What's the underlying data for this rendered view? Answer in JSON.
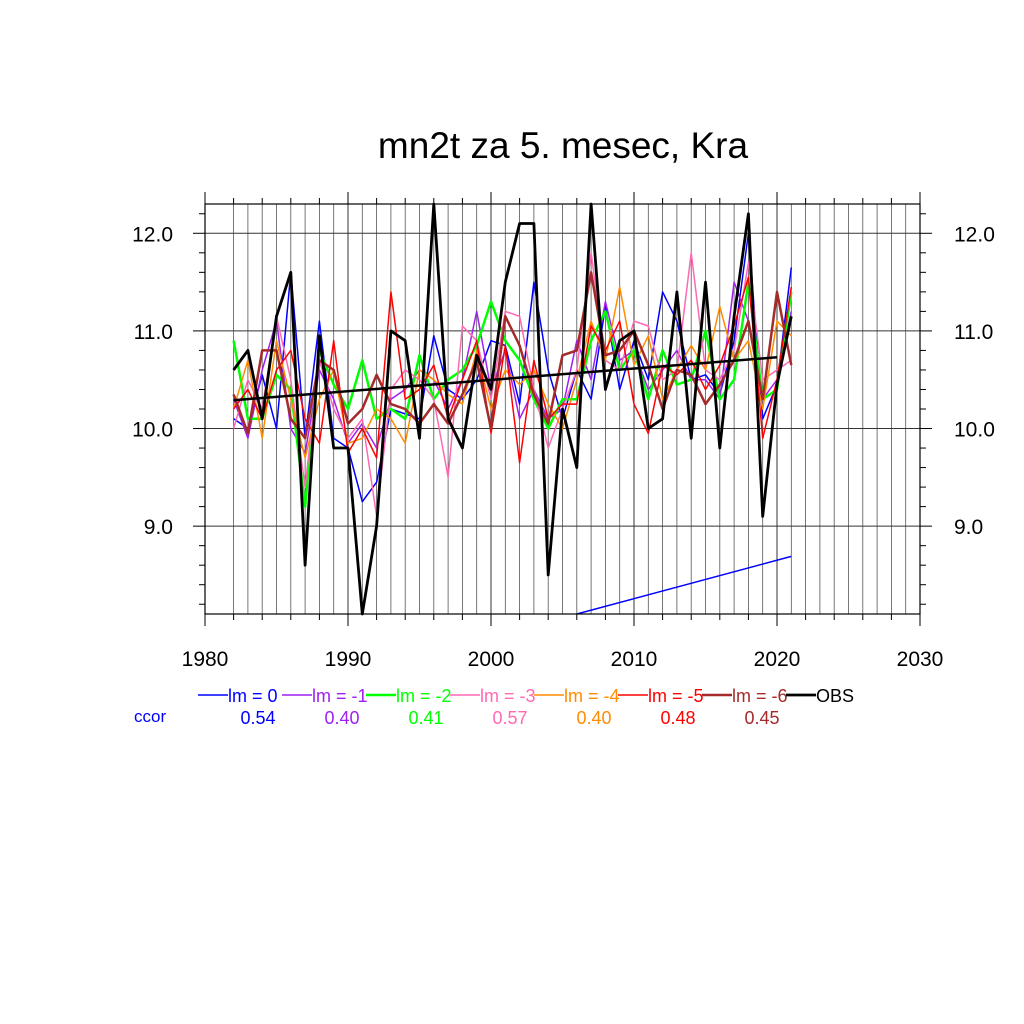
{
  "chart_data": {
    "type": "line",
    "title": "mn2t za 5. mesec, Kra",
    "xlabel": "",
    "ylabel": "",
    "xlim": [
      1980,
      2030
    ],
    "ylim": [
      8.1,
      12.3
    ],
    "x_ticks": [
      1980,
      1990,
      2000,
      2010,
      2020,
      2030
    ],
    "y_ticks": [
      9.0,
      10.0,
      11.0,
      12.0
    ],
    "y_tick_labels": [
      "9.0",
      "10.0",
      "11.0",
      "12.0"
    ],
    "grid": true,
    "legend_position": "bottom",
    "ccor_label": "ccor",
    "ccor_color": "#0000ff",
    "x": [
      1982,
      1983,
      1984,
      1985,
      1986,
      1987,
      1988,
      1989,
      1990,
      1991,
      1992,
      1993,
      1994,
      1995,
      1996,
      1997,
      1998,
      1999,
      2000,
      2001,
      2002,
      2003,
      2004,
      2005,
      2006,
      2007,
      2008,
      2009,
      2010,
      2011,
      2012,
      2013,
      2014,
      2015,
      2016,
      2017,
      2018,
      2019,
      2020,
      2021
    ],
    "series": [
      {
        "name": "lm = 0",
        "color": "#0000ff",
        "width": 1.5,
        "ccor": "0.54",
        "values": [
          10.1,
          10.0,
          10.55,
          10.0,
          11.6,
          9.9,
          11.1,
          9.9,
          9.8,
          9.25,
          9.45,
          10.2,
          10.15,
          10.1,
          10.95,
          10.4,
          10.3,
          10.5,
          10.9,
          10.85,
          10.25,
          11.5,
          10.6,
          10.1,
          10.6,
          10.3,
          11.25,
          10.4,
          10.9,
          10.5,
          11.4,
          11.1,
          10.5,
          10.55,
          10.35,
          10.9,
          12.0,
          10.1,
          10.45,
          11.65
        ]
      },
      {
        "name": "lm = -1",
        "color": "#a020f0",
        "width": 1.5,
        "ccor": "0.40",
        "values": [
          10.3,
          9.9,
          10.6,
          11.1,
          10.0,
          9.75,
          10.6,
          10.3,
          9.85,
          10.05,
          9.8,
          10.3,
          10.4,
          10.6,
          10.5,
          10.2,
          10.5,
          11.2,
          10.4,
          10.8,
          10.1,
          10.4,
          10.1,
          10.2,
          10.9,
          10.5,
          11.3,
          10.7,
          10.8,
          10.4,
          10.6,
          10.8,
          10.5,
          10.5,
          10.3,
          11.5,
          11.1,
          10.3,
          10.5,
          11.2
        ]
      },
      {
        "name": "lm = -2",
        "color": "#00ff00",
        "width": 2.5,
        "ccor": "0.41",
        "values": [
          10.9,
          10.1,
          10.1,
          10.55,
          10.4,
          9.2,
          10.8,
          10.45,
          10.2,
          10.7,
          10.1,
          10.2,
          10.1,
          10.75,
          10.3,
          10.5,
          10.6,
          10.85,
          11.3,
          10.9,
          10.7,
          10.3,
          10.0,
          10.3,
          10.3,
          10.9,
          11.2,
          10.6,
          10.8,
          10.3,
          10.8,
          10.45,
          10.5,
          11.0,
          10.3,
          10.5,
          11.5,
          10.3,
          10.4,
          11.4
        ]
      },
      {
        "name": "lm = -3",
        "color": "#ff69b4",
        "width": 1.5,
        "ccor": "0.57",
        "values": [
          10.0,
          10.5,
          10.2,
          11.15,
          10.5,
          9.4,
          10.7,
          10.2,
          9.9,
          10.1,
          9.1,
          10.4,
          10.6,
          10.5,
          10.3,
          9.5,
          11.05,
          10.9,
          10.3,
          11.2,
          11.15,
          10.4,
          9.8,
          10.2,
          10.6,
          11.8,
          10.7,
          10.6,
          11.1,
          11.05,
          10.5,
          10.6,
          11.8,
          10.6,
          10.5,
          10.8,
          11.7,
          10.5,
          10.6,
          10.7
        ]
      },
      {
        "name": "lm = -4",
        "color": "#ff8c00",
        "width": 1.5,
        "ccor": "0.40",
        "values": [
          10.2,
          10.7,
          9.9,
          10.9,
          10.3,
          9.7,
          10.3,
          10.6,
          9.85,
          9.9,
          10.2,
          10.1,
          9.85,
          10.6,
          10.5,
          10.35,
          10.25,
          10.8,
          10.2,
          10.6,
          10.45,
          10.6,
          10.25,
          10.0,
          10.5,
          11.1,
          10.7,
          11.45,
          10.65,
          10.95,
          10.3,
          10.6,
          10.85,
          10.6,
          11.25,
          10.7,
          10.9,
          10.2,
          11.1,
          10.95
        ]
      },
      {
        "name": "lm = -5",
        "color": "#ff0000",
        "width": 1.5,
        "ccor": "0.48",
        "values": [
          10.2,
          10.4,
          10.1,
          10.6,
          10.8,
          10.1,
          9.85,
          10.9,
          9.75,
          10.0,
          9.7,
          11.4,
          10.3,
          10.4,
          10.65,
          10.1,
          10.5,
          10.9,
          9.95,
          10.85,
          9.65,
          10.7,
          10.1,
          10.25,
          10.25,
          11.05,
          10.8,
          11.1,
          10.25,
          9.95,
          10.65,
          10.55,
          10.7,
          10.4,
          10.65,
          11.05,
          11.55,
          9.9,
          10.5,
          11.45
        ]
      },
      {
        "name": "lm = -6",
        "color": "#a52a2a",
        "width": 2.5,
        "ccor": "0.45",
        "values": [
          10.35,
          9.95,
          10.8,
          10.8,
          10.1,
          9.9,
          10.7,
          10.6,
          10.05,
          10.2,
          10.55,
          10.25,
          10.2,
          10.05,
          10.25,
          10.05,
          10.35,
          10.7,
          10.0,
          11.15,
          10.85,
          10.35,
          10.05,
          10.75,
          10.8,
          11.6,
          10.75,
          10.8,
          11.0,
          10.65,
          10.2,
          10.6,
          10.55,
          10.25,
          10.45,
          10.7,
          11.1,
          10.3,
          11.4,
          10.65
        ]
      },
      {
        "name": "OBS",
        "color": "#000000",
        "width": 2.8,
        "ccor": "",
        "values": [
          10.6,
          10.8,
          10.1,
          11.15,
          11.6,
          8.6,
          10.95,
          9.8,
          9.8,
          8.1,
          9.0,
          11.0,
          10.9,
          9.9,
          12.3,
          10.1,
          9.8,
          10.75,
          10.4,
          11.5,
          12.1,
          12.1,
          8.5,
          10.2,
          9.6,
          12.3,
          10.4,
          10.9,
          11.0,
          10.0,
          10.1,
          11.4,
          9.9,
          11.5,
          9.8,
          11.15,
          12.2,
          9.1,
          10.45,
          11.15
        ]
      }
    ],
    "trend_lines": [
      {
        "color": "#000000",
        "width": 2.5,
        "x": [
          1982,
          2020
        ],
        "y": [
          10.29,
          10.73
        ]
      },
      {
        "color": "#0000ff",
        "width": 1.5,
        "x": [
          2006,
          2021
        ],
        "y": [
          8.1,
          8.69
        ]
      }
    ]
  }
}
